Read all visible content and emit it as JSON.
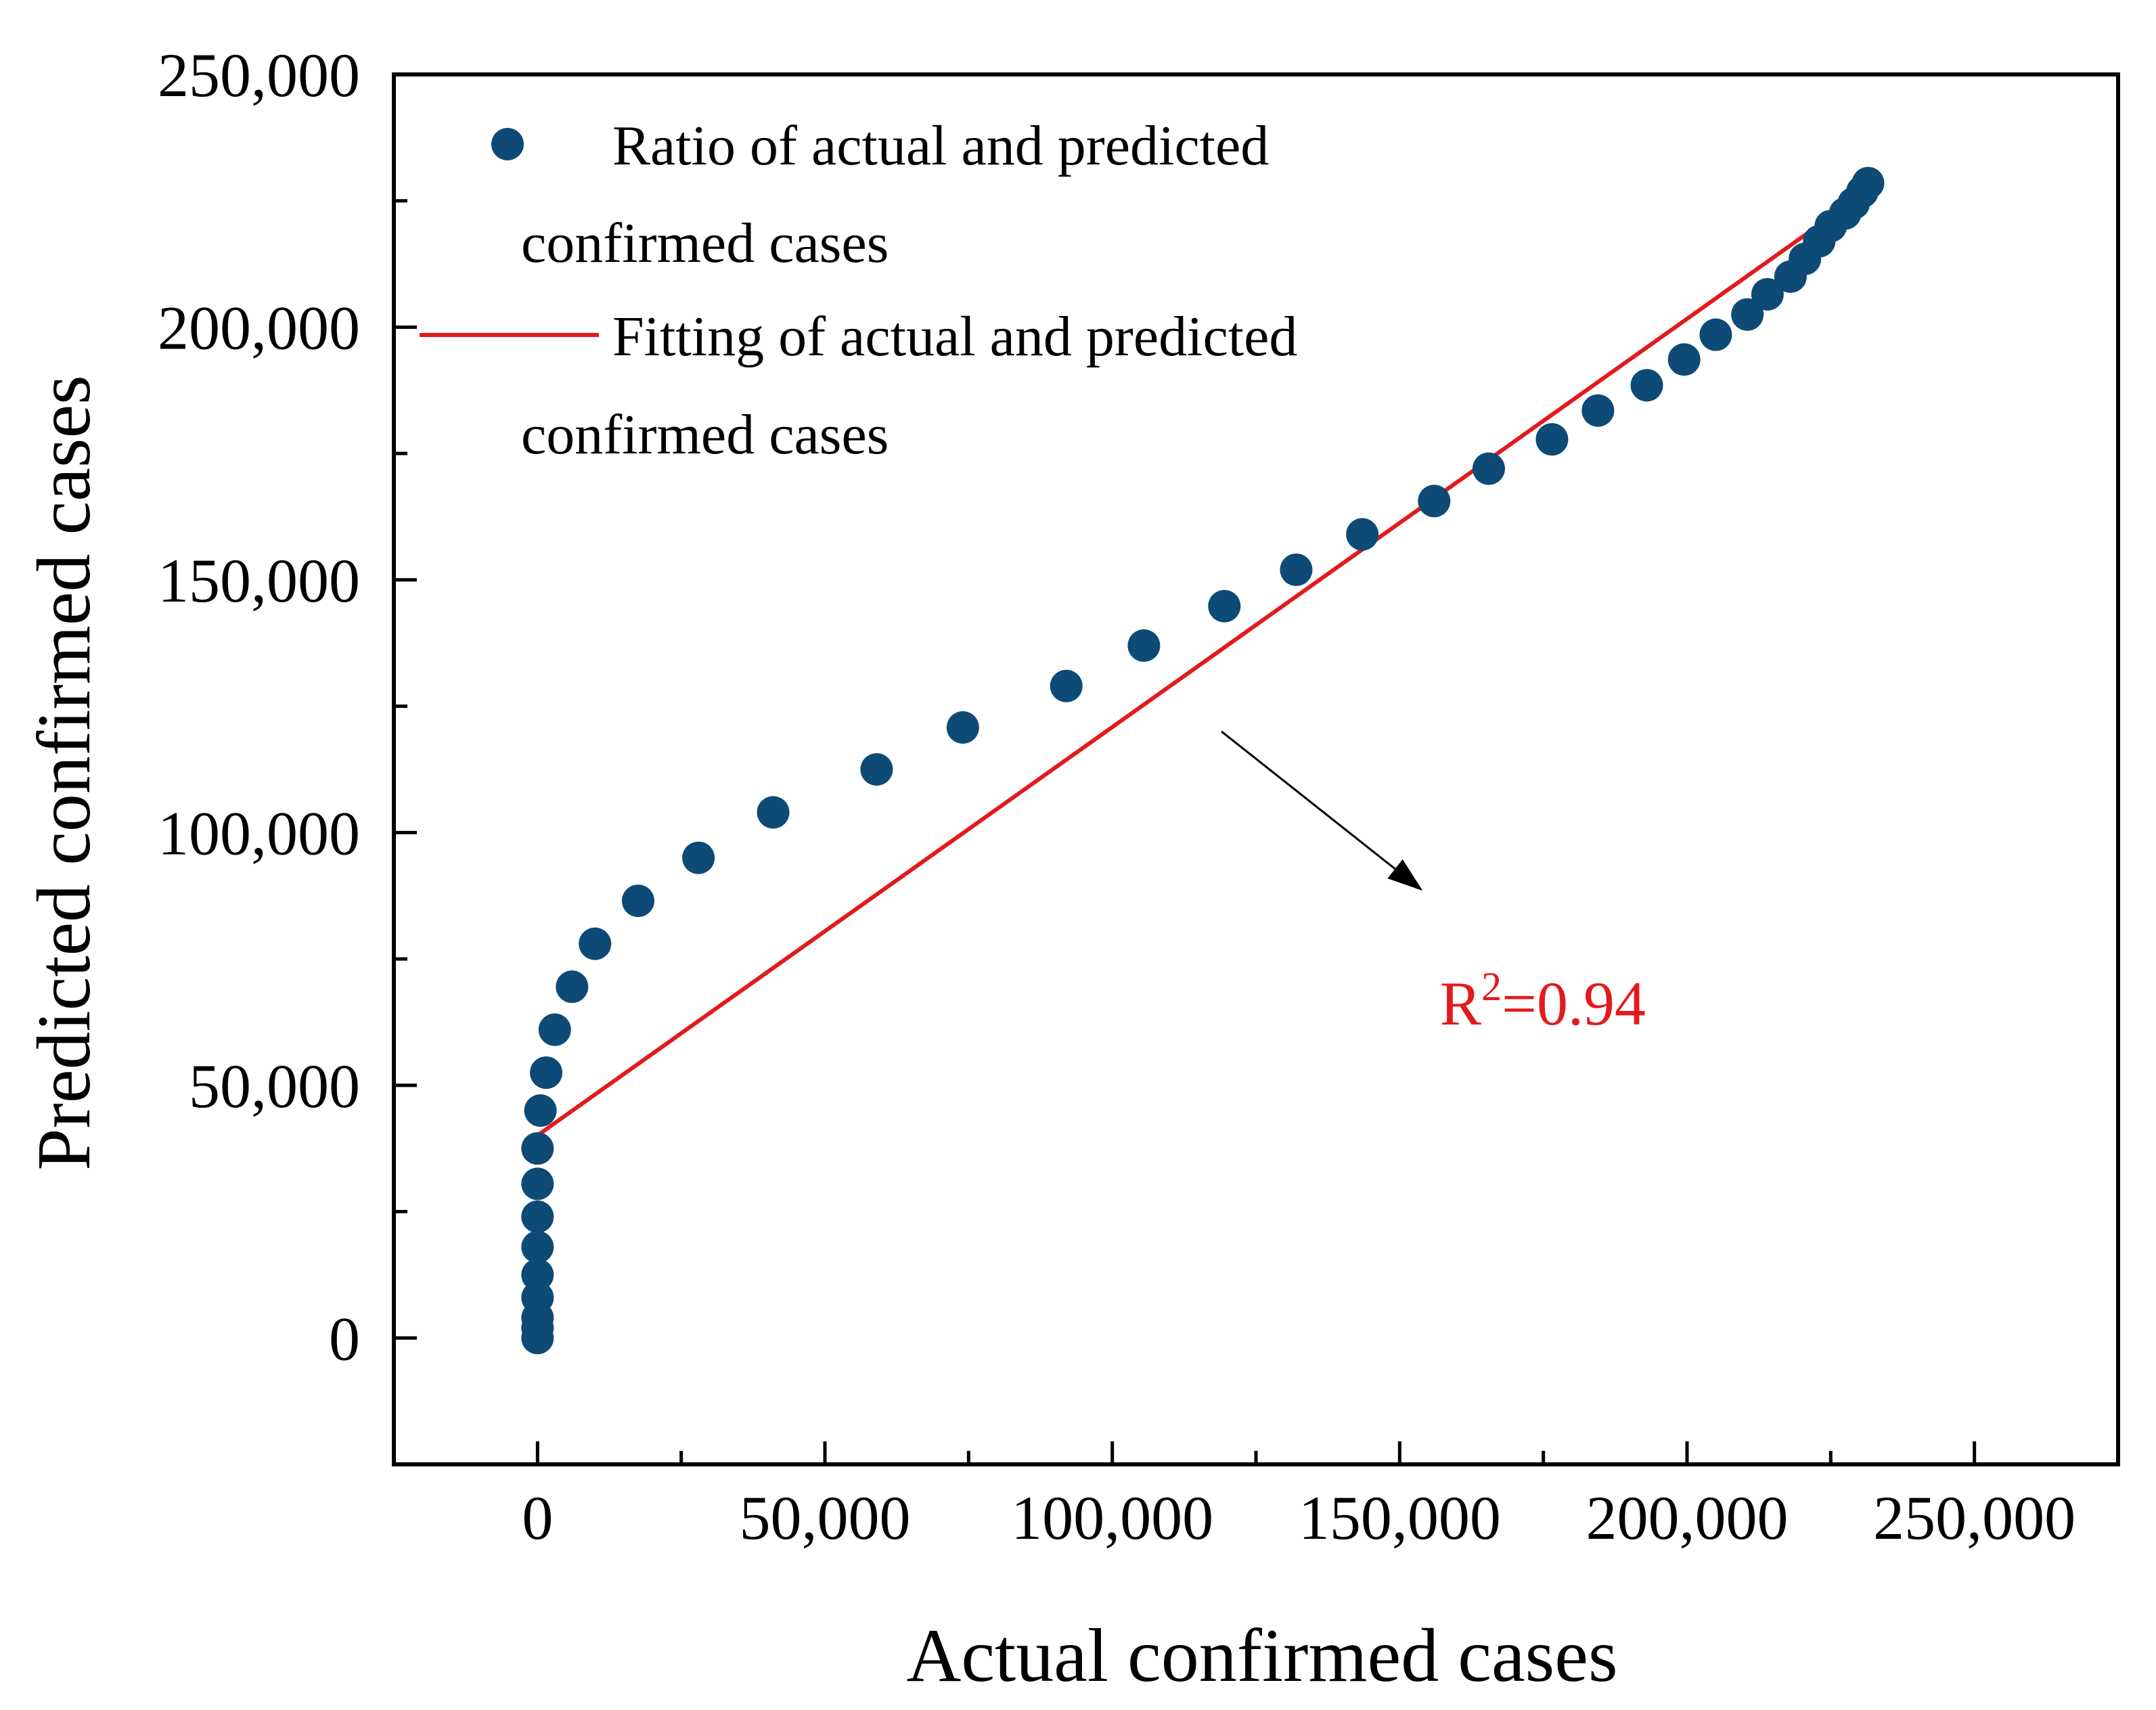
{
  "chart_data": {
    "type": "scatter",
    "title": "",
    "xlabel": "Actual confirmed cases",
    "ylabel": "Predicted confirmed cases",
    "xlim": [
      -25000,
      275000
    ],
    "ylim": [
      -25000,
      250000
    ],
    "x_ticks": [
      0,
      50000,
      100000,
      150000,
      200000,
      250000
    ],
    "x_tick_labels": [
      "0",
      "50,000",
      "100,000",
      "150,000",
      "200,000",
      "250,000"
    ],
    "y_ticks": [
      0,
      50000,
      100000,
      150000,
      200000,
      250000
    ],
    "y_tick_labels": [
      "0",
      "50,000",
      "100,000",
      "150,000",
      "200,000",
      "250,000"
    ],
    "x_minor_ticks": [
      25000,
      75000,
      125000,
      175000,
      225000
    ],
    "y_minor_ticks": [
      25000,
      75000,
      125000,
      175000,
      225000
    ],
    "grid": false,
    "legend_position": "top-left",
    "series": [
      {
        "name": "Ratio of actual and predicted confirmed cases",
        "legend_lines": [
          "Ratio of actual and predicted",
          "confirmed cases"
        ],
        "kind": "scatter",
        "color": "#0d4a76",
        "points": [
          [
            0,
            0
          ],
          [
            0,
            2000
          ],
          [
            0,
            4000
          ],
          [
            0,
            8000
          ],
          [
            0,
            12500
          ],
          [
            0,
            18000
          ],
          [
            0,
            24000
          ],
          [
            0,
            30500
          ],
          [
            0,
            37500
          ],
          [
            500,
            45000
          ],
          [
            1500,
            52500
          ],
          [
            3000,
            61000
          ],
          [
            6000,
            69500
          ],
          [
            10000,
            78000
          ],
          [
            17500,
            86500
          ],
          [
            28000,
            95000
          ],
          [
            41000,
            104000
          ],
          [
            59000,
            112500
          ],
          [
            74000,
            120800
          ],
          [
            92000,
            129000
          ],
          [
            105500,
            137000
          ],
          [
            119500,
            144800
          ],
          [
            132000,
            152000
          ],
          [
            143500,
            159000
          ],
          [
            156000,
            165600
          ],
          [
            165500,
            172000
          ],
          [
            176500,
            177800
          ],
          [
            184500,
            183500
          ],
          [
            193000,
            188500
          ],
          [
            199500,
            193600
          ],
          [
            205000,
            198500
          ],
          [
            210500,
            202500
          ],
          [
            214000,
            206500
          ],
          [
            218000,
            210000
          ],
          [
            220500,
            213500
          ],
          [
            223000,
            217000
          ],
          [
            225000,
            220000
          ],
          [
            227500,
            222500
          ],
          [
            229000,
            224500
          ],
          [
            230500,
            226800
          ],
          [
            231500,
            228500
          ]
        ]
      },
      {
        "name": "Fitting of actual and predicted confirmed cases",
        "legend_lines": [
          "Fitting of actual and predicted",
          "confirmed cases"
        ],
        "kind": "line",
        "color": "#e31a1c",
        "x": [
          500,
          232000
        ],
        "y": [
          40500,
          227500
        ]
      }
    ],
    "annotations": [
      {
        "text_base": "R",
        "text_sup": "2",
        "text_rest": "=0.94",
        "x": 157000,
        "y": 62000,
        "color": "#e31a1c"
      }
    ],
    "arrow": {
      "from": [
        119000,
        120000
      ],
      "to": [
        154000,
        88500
      ],
      "color": "#000000"
    }
  }
}
